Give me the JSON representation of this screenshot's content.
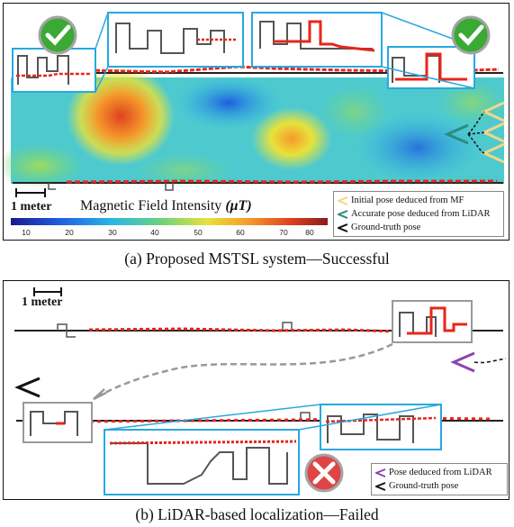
{
  "panel_a": {
    "caption": "(a) Proposed MSTSL system—Successful",
    "colorbar": {
      "title": "Magnetic Field Intensity",
      "unit": "(μT)",
      "ticks": [
        "10",
        "20",
        "30",
        "40",
        "50",
        "60",
        "70",
        "80"
      ],
      "colors": [
        "#1a1a8c",
        "#1f5ce0",
        "#2bb6e6",
        "#6ed47a",
        "#e8e23a",
        "#f59a2c",
        "#e0421e",
        "#8c1a1a"
      ]
    },
    "scale_label": "1 meter",
    "legend": [
      {
        "label": "Initial pose deduced from MF",
        "color": "#f4d58a"
      },
      {
        "label": "Accurate pose deduced from LiDAR",
        "color": "#2e8b7a"
      },
      {
        "label": "Ground-truth pose",
        "color": "#111111"
      }
    ],
    "status_icon": "checkmark-icon"
  },
  "panel_b": {
    "caption": "(b) LiDAR-based localization—Failed",
    "scale_label": "1 meter",
    "legend": [
      {
        "label": "Pose deduced from LiDAR",
        "color": "#8e44ad"
      },
      {
        "label": "Ground-truth pose",
        "color": "#111111"
      }
    ],
    "status_icon": "cross-icon"
  },
  "colors": {
    "trajectory": "#e8251b",
    "map_line": "#222222",
    "zoom_box": "#29a8e0",
    "zoom_box_gray": "#999999"
  }
}
